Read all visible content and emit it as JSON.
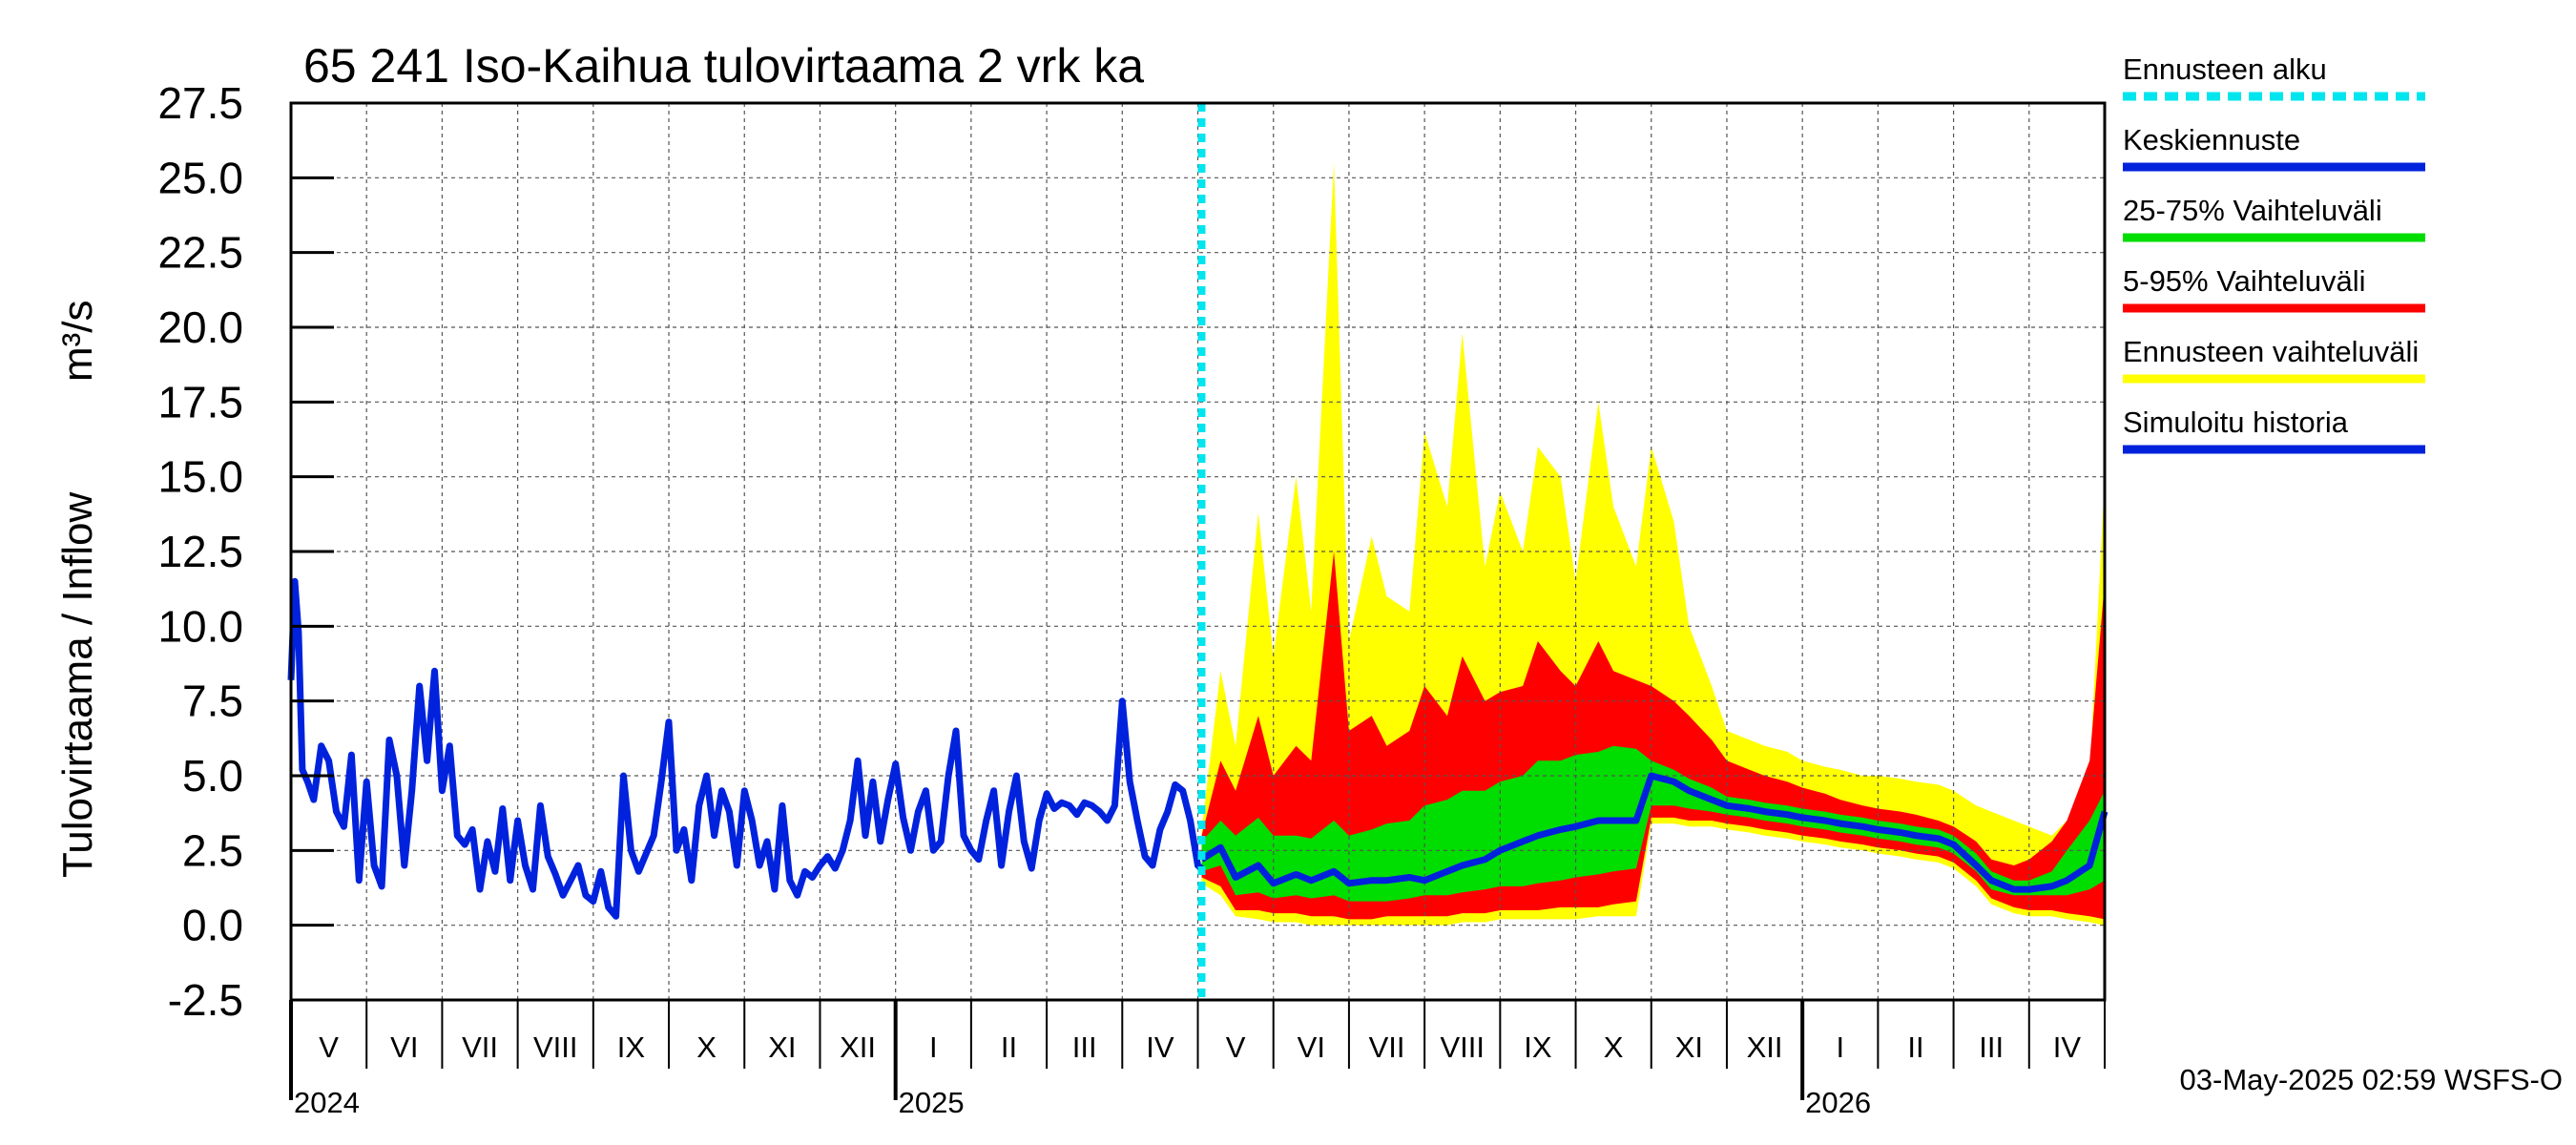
{
  "chart_data": {
    "type": "area",
    "title": "65 241 Iso-Kaihua tulovirtaama 2 vrk ka",
    "ylabel_left": "Tulovirtaama / Inflow",
    "ylabel_unit": "m³/s",
    "ylim": [
      -2.5,
      27.5
    ],
    "y_ticks": [
      "-2.5",
      "0.0",
      "2.5",
      "5.0",
      "7.5",
      "10.0",
      "12.5",
      "15.0",
      "17.5",
      "20.0",
      "22.5",
      "25.0",
      "27.5"
    ],
    "x_range_months": [
      "2024-04",
      "2026-05"
    ],
    "month_labels": [
      {
        "label": "V",
        "month": 0
      },
      {
        "label": "VI",
        "month": 1
      },
      {
        "label": "VII",
        "month": 2
      },
      {
        "label": "VIII",
        "month": 3
      },
      {
        "label": "IX",
        "month": 4
      },
      {
        "label": "X",
        "month": 5
      },
      {
        "label": "XI",
        "month": 6
      },
      {
        "label": "XII",
        "month": 7
      },
      {
        "label": "I",
        "month": 8
      },
      {
        "label": "II",
        "month": 9
      },
      {
        "label": "III",
        "month": 10
      },
      {
        "label": "IV",
        "month": 11
      },
      {
        "label": "V",
        "month": 12
      },
      {
        "label": "VI",
        "month": 13
      },
      {
        "label": "VII",
        "month": 14
      },
      {
        "label": "VIII",
        "month": 15
      },
      {
        "label": "IX",
        "month": 16
      },
      {
        "label": "X",
        "month": 17
      },
      {
        "label": "XI",
        "month": 18
      },
      {
        "label": "XII",
        "month": 19
      },
      {
        "label": "I",
        "month": 20
      },
      {
        "label": "II",
        "month": 21
      },
      {
        "label": "III",
        "month": 22
      },
      {
        "label": "IV",
        "month": 23
      }
    ],
    "year_labels": [
      {
        "label": "2024",
        "month": 0
      },
      {
        "label": "2025",
        "month": 8
      },
      {
        "label": "2026",
        "month": 20
      }
    ],
    "forecast_start_month": 12.05,
    "legend": [
      {
        "label": "Ennusteen alku",
        "color": "#00e5ee",
        "style": "dashed"
      },
      {
        "label": "Keskiennuste",
        "color": "#0022dd",
        "style": "solid"
      },
      {
        "label": "25-75% Vaihteluväli",
        "color": "#00dd00",
        "style": "solid"
      },
      {
        "label": "5-95% Vaihteluväli",
        "color": "#ff0000",
        "style": "solid"
      },
      {
        "label": "Ennusteen vaihteluväli",
        "color": "#ffff00",
        "style": "solid"
      },
      {
        "label": "Simuloitu historia",
        "color": "#0022dd",
        "style": "solid"
      }
    ],
    "colors": {
      "history": "#0022dd",
      "median": "#0022dd",
      "band_25_75": "#00dd00",
      "band_5_95": "#ff0000",
      "band_full": "#ffff00",
      "forecast_start": "#00e5ee"
    },
    "history_series": {
      "name": "Simuloitu historia",
      "x": [
        0.0,
        0.05,
        0.1,
        0.15,
        0.22,
        0.3,
        0.4,
        0.5,
        0.6,
        0.7,
        0.8,
        0.9,
        1.0,
        1.1,
        1.2,
        1.3,
        1.4,
        1.5,
        1.6,
        1.7,
        1.8,
        1.9,
        2.0,
        2.1,
        2.2,
        2.3,
        2.4,
        2.5,
        2.6,
        2.7,
        2.8,
        2.9,
        3.0,
        3.1,
        3.2,
        3.3,
        3.4,
        3.5,
        3.6,
        3.7,
        3.8,
        3.9,
        4.0,
        4.1,
        4.2,
        4.3,
        4.4,
        4.5,
        4.6,
        4.7,
        4.8,
        4.9,
        5.0,
        5.1,
        5.2,
        5.3,
        5.4,
        5.5,
        5.6,
        5.7,
        5.8,
        5.9,
        6.0,
        6.1,
        6.2,
        6.3,
        6.4,
        6.5,
        6.6,
        6.7,
        6.8,
        6.9,
        7.0,
        7.1,
        7.2,
        7.3,
        7.4,
        7.5,
        7.6,
        7.7,
        7.8,
        7.9,
        8.0,
        8.1,
        8.2,
        8.3,
        8.4,
        8.5,
        8.6,
        8.7,
        8.8,
        8.9,
        9.0,
        9.1,
        9.2,
        9.3,
        9.4,
        9.5,
        9.6,
        9.7,
        9.8,
        9.9,
        10.0,
        10.1,
        10.2,
        10.3,
        10.4,
        10.5,
        10.6,
        10.7,
        10.8,
        10.9,
        11.0,
        11.1,
        11.2,
        11.3,
        11.4,
        11.5,
        11.6,
        11.7,
        11.8,
        11.9,
        12.0,
        12.05
      ],
      "y": [
        8.2,
        11.5,
        9.8,
        5.2,
        4.8,
        4.2,
        6.0,
        5.5,
        3.8,
        3.3,
        5.7,
        1.5,
        4.8,
        2.0,
        1.3,
        6.2,
        5.0,
        2.0,
        4.5,
        8.0,
        5.5,
        8.5,
        4.5,
        6.0,
        3.0,
        2.7,
        3.2,
        1.2,
        2.8,
        1.8,
        3.9,
        1.5,
        3.5,
        2.0,
        1.2,
        4.0,
        2.3,
        1.7,
        1.0,
        1.5,
        2.0,
        1.0,
        0.8,
        1.8,
        0.6,
        0.3,
        5.0,
        2.5,
        1.8,
        2.4,
        3.0,
        4.8,
        6.8,
        2.5,
        3.2,
        1.5,
        4.0,
        5.0,
        3.0,
        4.5,
        3.8,
        2.0,
        4.5,
        3.5,
        2.0,
        2.8,
        1.2,
        4.0,
        1.5,
        1.0,
        1.8,
        1.6,
        2.0,
        2.3,
        1.9,
        2.5,
        3.5,
        5.5,
        3.0,
        4.8,
        2.8,
        4.2,
        5.4,
        3.6,
        2.5,
        3.8,
        4.5,
        2.5,
        2.8,
        5.0,
        6.5,
        3.0,
        2.5,
        2.2,
        3.5,
        4.5,
        2.0,
        3.8,
        5.0,
        2.8,
        1.9,
        3.5,
        4.4,
        3.9,
        4.1,
        4.0,
        3.7,
        4.1,
        4.0,
        3.8,
        3.5,
        4.0,
        7.5,
        4.8,
        3.5,
        2.3,
        2.0,
        3.2,
        3.8,
        4.7,
        4.5,
        3.5,
        2.0,
        1.9
      ]
    },
    "forecast_bands": {
      "x": [
        12.05,
        12.3,
        12.5,
        12.8,
        13.0,
        13.3,
        13.5,
        13.8,
        14.0,
        14.3,
        14.5,
        14.8,
        15.0,
        15.3,
        15.5,
        15.8,
        16.0,
        16.3,
        16.5,
        16.8,
        17.0,
        17.3,
        17.5,
        17.8,
        18.0,
        18.3,
        18.5,
        18.8,
        19.0,
        19.3,
        19.5,
        19.8,
        20.0,
        20.3,
        20.5,
        20.8,
        21.0,
        21.3,
        21.5,
        21.8,
        22.0,
        22.3,
        22.5,
        22.8,
        23.0,
        23.3,
        23.5,
        23.8,
        24.0
      ],
      "full_upper": [
        3.2,
        8.5,
        6.0,
        13.8,
        9.0,
        15.0,
        10.5,
        25.5,
        9.5,
        13.0,
        11.0,
        10.5,
        16.5,
        14.0,
        19.8,
        12.0,
        14.5,
        12.5,
        16.0,
        15.0,
        11.5,
        17.5,
        14.0,
        12.0,
        16.0,
        13.5,
        10.0,
        8.0,
        6.5,
        6.2,
        6.0,
        5.8,
        5.5,
        5.3,
        5.2,
        5.0,
        5.0,
        4.9,
        4.8,
        4.7,
        4.5,
        4.0,
        3.8,
        3.5,
        3.3,
        3.0,
        3.5,
        5.0,
        15.0
      ],
      "p95": [
        3.0,
        5.5,
        4.5,
        7.0,
        5.0,
        6.0,
        5.5,
        12.5,
        6.5,
        7.0,
        6.0,
        6.5,
        8.0,
        7.0,
        9.0,
        7.5,
        7.8,
        8.0,
        9.5,
        8.5,
        8.0,
        9.5,
        8.5,
        8.2,
        8.0,
        7.5,
        7.0,
        6.2,
        5.5,
        5.2,
        5.0,
        4.8,
        4.6,
        4.4,
        4.2,
        4.0,
        3.9,
        3.8,
        3.7,
        3.5,
        3.3,
        2.8,
        2.2,
        2.0,
        2.2,
        2.8,
        3.5,
        5.5,
        11.5
      ],
      "p75": [
        2.8,
        3.5,
        3.0,
        3.6,
        3.0,
        3.0,
        2.9,
        3.5,
        3.0,
        3.2,
        3.4,
        3.5,
        4.0,
        4.2,
        4.5,
        4.5,
        4.8,
        5.0,
        5.5,
        5.5,
        5.7,
        5.8,
        6.0,
        5.9,
        5.5,
        5.2,
        4.9,
        4.6,
        4.3,
        4.2,
        4.1,
        4.0,
        3.9,
        3.8,
        3.7,
        3.6,
        3.5,
        3.4,
        3.3,
        3.2,
        3.0,
        2.4,
        1.8,
        1.5,
        1.5,
        1.8,
        2.5,
        3.5,
        4.5
      ],
      "median": [
        2.2,
        2.6,
        1.6,
        2.0,
        1.4,
        1.7,
        1.5,
        1.8,
        1.4,
        1.5,
        1.5,
        1.6,
        1.5,
        1.8,
        2.0,
        2.2,
        2.5,
        2.8,
        3.0,
        3.2,
        3.3,
        3.5,
        3.5,
        3.5,
        5.0,
        4.8,
        4.5,
        4.2,
        4.0,
        3.9,
        3.8,
        3.7,
        3.6,
        3.5,
        3.4,
        3.3,
        3.2,
        3.1,
        3.0,
        2.9,
        2.7,
        2.0,
        1.5,
        1.2,
        1.2,
        1.3,
        1.5,
        2.0,
        3.8
      ],
      "p25": [
        1.8,
        2.0,
        1.0,
        1.1,
        0.9,
        1.0,
        0.9,
        1.0,
        0.8,
        0.8,
        0.8,
        0.9,
        1.0,
        1.0,
        1.1,
        1.2,
        1.3,
        1.3,
        1.4,
        1.5,
        1.6,
        1.7,
        1.8,
        1.9,
        4.0,
        4.0,
        3.9,
        3.8,
        3.7,
        3.6,
        3.5,
        3.4,
        3.3,
        3.2,
        3.1,
        3.0,
        2.9,
        2.8,
        2.7,
        2.6,
        2.4,
        1.8,
        1.2,
        1.0,
        1.0,
        1.0,
        1.0,
        1.2,
        1.5
      ],
      "p5": [
        1.6,
        1.3,
        0.5,
        0.5,
        0.4,
        0.4,
        0.3,
        0.3,
        0.2,
        0.2,
        0.3,
        0.3,
        0.3,
        0.3,
        0.4,
        0.4,
        0.5,
        0.5,
        0.5,
        0.6,
        0.6,
        0.6,
        0.7,
        0.8,
        3.6,
        3.6,
        3.5,
        3.5,
        3.4,
        3.3,
        3.2,
        3.1,
        3.0,
        2.9,
        2.8,
        2.7,
        2.6,
        2.5,
        2.4,
        2.3,
        2.1,
        1.5,
        0.9,
        0.6,
        0.5,
        0.5,
        0.4,
        0.3,
        0.2
      ],
      "full_lower": [
        1.4,
        1.0,
        0.3,
        0.2,
        0.1,
        0.1,
        0.0,
        0.0,
        0.0,
        0.0,
        0.0,
        0.0,
        0.0,
        0.0,
        0.1,
        0.1,
        0.2,
        0.2,
        0.2,
        0.2,
        0.2,
        0.3,
        0.3,
        0.3,
        3.4,
        3.4,
        3.3,
        3.3,
        3.2,
        3.1,
        3.0,
        2.9,
        2.8,
        2.7,
        2.6,
        2.5,
        2.4,
        2.3,
        2.2,
        2.1,
        1.9,
        1.3,
        0.7,
        0.4,
        0.3,
        0.3,
        0.2,
        0.1,
        0.0
      ]
    }
  },
  "footer": {
    "timestamp": "03-May-2025 02:59 WSFS-O"
  }
}
